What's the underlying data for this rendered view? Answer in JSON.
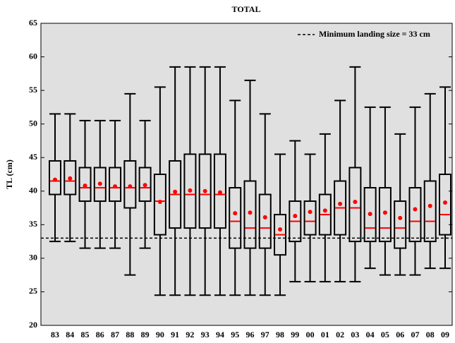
{
  "chart_data": {
    "type": "box",
    "title": "TOTAL",
    "y_label": "TL (cm)",
    "categories": [
      "83",
      "84",
      "85",
      "86",
      "87",
      "88",
      "89",
      "90",
      "91",
      "92",
      "93",
      "94",
      "95",
      "96",
      "97",
      "98",
      "99",
      "00",
      "01",
      "02",
      "03",
      "04",
      "05",
      "06",
      "07",
      "08",
      "09"
    ],
    "min": [
      32.5,
      32.5,
      31.5,
      31.5,
      31.5,
      27.5,
      31.5,
      24.5,
      24.5,
      24.5,
      24.5,
      24.5,
      24.5,
      24.5,
      24.5,
      24.5,
      26.5,
      26.5,
      26.5,
      26.5,
      26.5,
      28.5,
      27.5,
      27.5,
      27.5,
      28.5,
      28.5
    ],
    "q1": [
      39.5,
      39.5,
      38.5,
      38.5,
      38.5,
      37.5,
      38.5,
      33.5,
      34.5,
      34.5,
      34.5,
      34.5,
      31.5,
      31.5,
      31.5,
      30.5,
      32.5,
      33.5,
      33.5,
      33.5,
      32.5,
      32.5,
      32.5,
      31.5,
      32.5,
      32.5,
      33.5
    ],
    "median": [
      41.5,
      41.5,
      40.5,
      40.5,
      40.5,
      40.5,
      40.5,
      38.5,
      39.5,
      39.5,
      39.5,
      39.5,
      35.5,
      34.5,
      34.5,
      33.5,
      35.5,
      35.5,
      36.5,
      37.5,
      37.5,
      34.5,
      34.5,
      34.5,
      35.5,
      35.5,
      36.5
    ],
    "q3": [
      44.5,
      44.5,
      43.5,
      43.5,
      43.5,
      44.5,
      43.5,
      42.5,
      44.5,
      45.5,
      45.5,
      45.5,
      40.5,
      41.5,
      39.5,
      36.5,
      38.5,
      38.5,
      39.5,
      41.5,
      43.5,
      40.5,
      40.5,
      38.5,
      40.5,
      41.5,
      42.5
    ],
    "max": [
      51.5,
      51.5,
      50.5,
      50.5,
      50.5,
      54.5,
      50.5,
      55.5,
      58.5,
      58.5,
      58.5,
      58.5,
      53.5,
      56.5,
      51.5,
      45.5,
      47.5,
      45.5,
      48.5,
      53.5,
      58.5,
      52.5,
      52.5,
      48.5,
      52.5,
      54.5,
      55.5
    ],
    "mean": [
      41.7,
      41.9,
      40.8,
      41.1,
      40.7,
      40.7,
      40.9,
      38.4,
      39.9,
      40.1,
      40.0,
      39.8,
      36.7,
      36.8,
      36.1,
      34.3,
      36.3,
      36.9,
      37.1,
      38.1,
      38.4,
      36.6,
      36.8,
      36.0,
      37.3,
      37.8,
      38.3
    ],
    "box_color": "#000000",
    "median_color": "#ff0000",
    "mean_color": "#ff0000",
    "background": "#e0e0e0",
    "reference_line": {
      "value": 33,
      "label": "Minimum landing size = 33 cm"
    },
    "legend": "upper right",
    "ylim": [
      20,
      65
    ],
    "yticks": [
      20,
      25,
      30,
      35,
      40,
      45,
      50,
      55,
      60,
      65
    ]
  }
}
